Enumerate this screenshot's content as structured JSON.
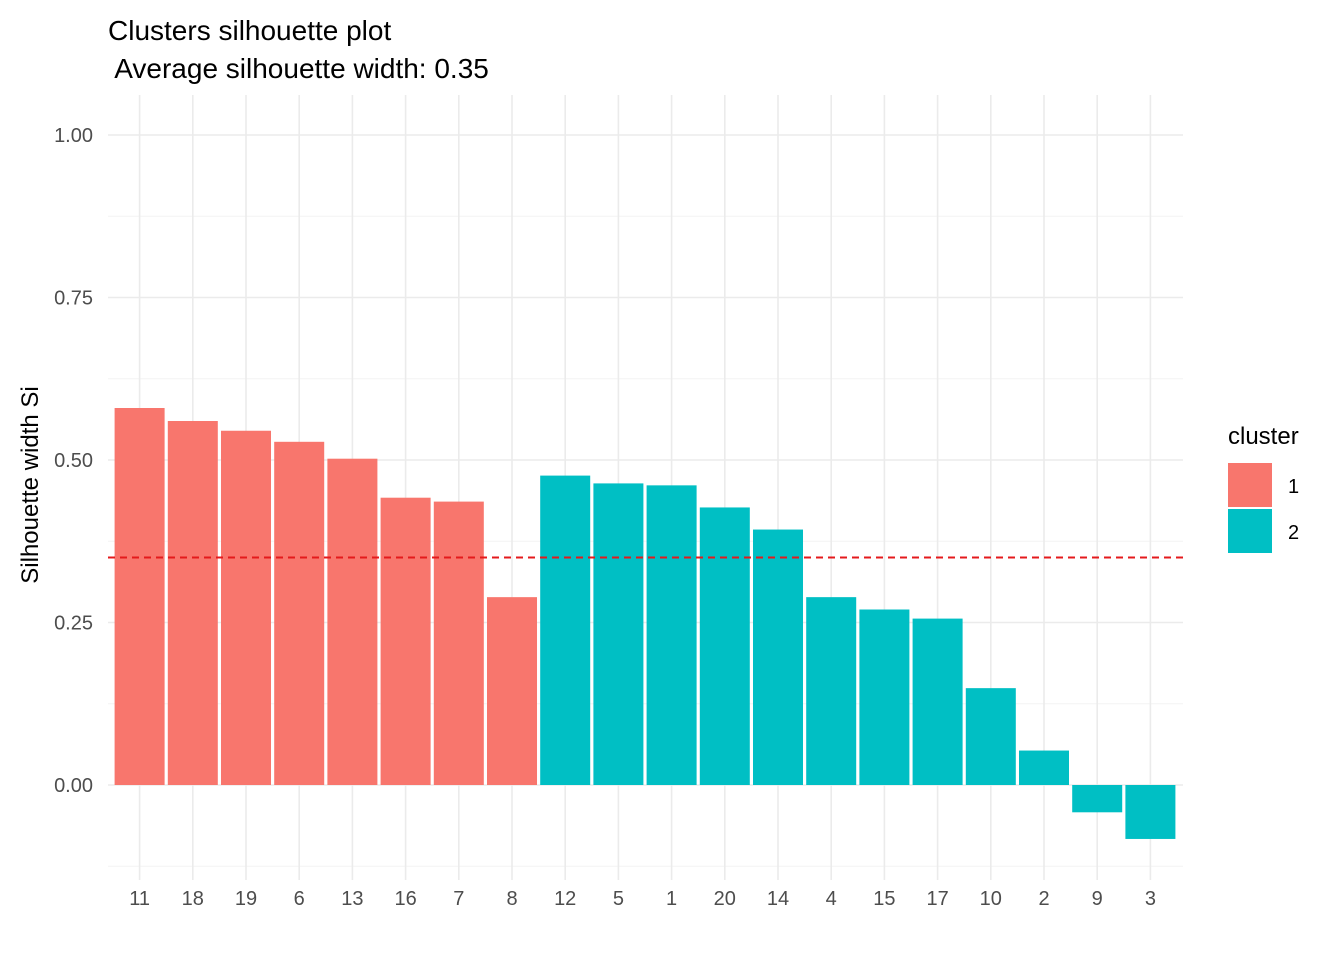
{
  "chart_data": {
    "type": "bar",
    "title": "Clusters silhouette plot",
    "subtitle": " Average silhouette width: 0.35",
    "xlabel": "",
    "ylabel": "Silhouette width Si",
    "ylim": [
      -0.125,
      1.0
    ],
    "yticks": [
      0.0,
      0.25,
      0.5,
      0.75,
      1.0
    ],
    "ytick_labels": [
      "0.00",
      "0.25",
      "0.50",
      "0.75",
      "1.00"
    ],
    "grid": true,
    "legend": {
      "title": "cluster",
      "position": "right"
    },
    "average_line": {
      "value": 0.35,
      "color": "#e41a1c",
      "style": "dashed"
    },
    "categories": [
      "11",
      "18",
      "19",
      "6",
      "13",
      "16",
      "7",
      "8",
      "12",
      "5",
      "1",
      "20",
      "14",
      "4",
      "15",
      "17",
      "10",
      "2",
      "9",
      "3"
    ],
    "values": [
      0.58,
      0.56,
      0.545,
      0.528,
      0.502,
      0.442,
      0.436,
      0.289,
      0.476,
      0.464,
      0.461,
      0.427,
      0.393,
      0.289,
      0.27,
      0.256,
      0.149,
      0.053,
      -0.042,
      -0.083
    ],
    "cluster": [
      "1",
      "1",
      "1",
      "1",
      "1",
      "1",
      "1",
      "1",
      "2",
      "2",
      "2",
      "2",
      "2",
      "2",
      "2",
      "2",
      "2",
      "2",
      "2",
      "2"
    ],
    "series": [
      {
        "name": "1",
        "color": "#f8766d"
      },
      {
        "name": "2",
        "color": "#00bfc4"
      }
    ]
  }
}
